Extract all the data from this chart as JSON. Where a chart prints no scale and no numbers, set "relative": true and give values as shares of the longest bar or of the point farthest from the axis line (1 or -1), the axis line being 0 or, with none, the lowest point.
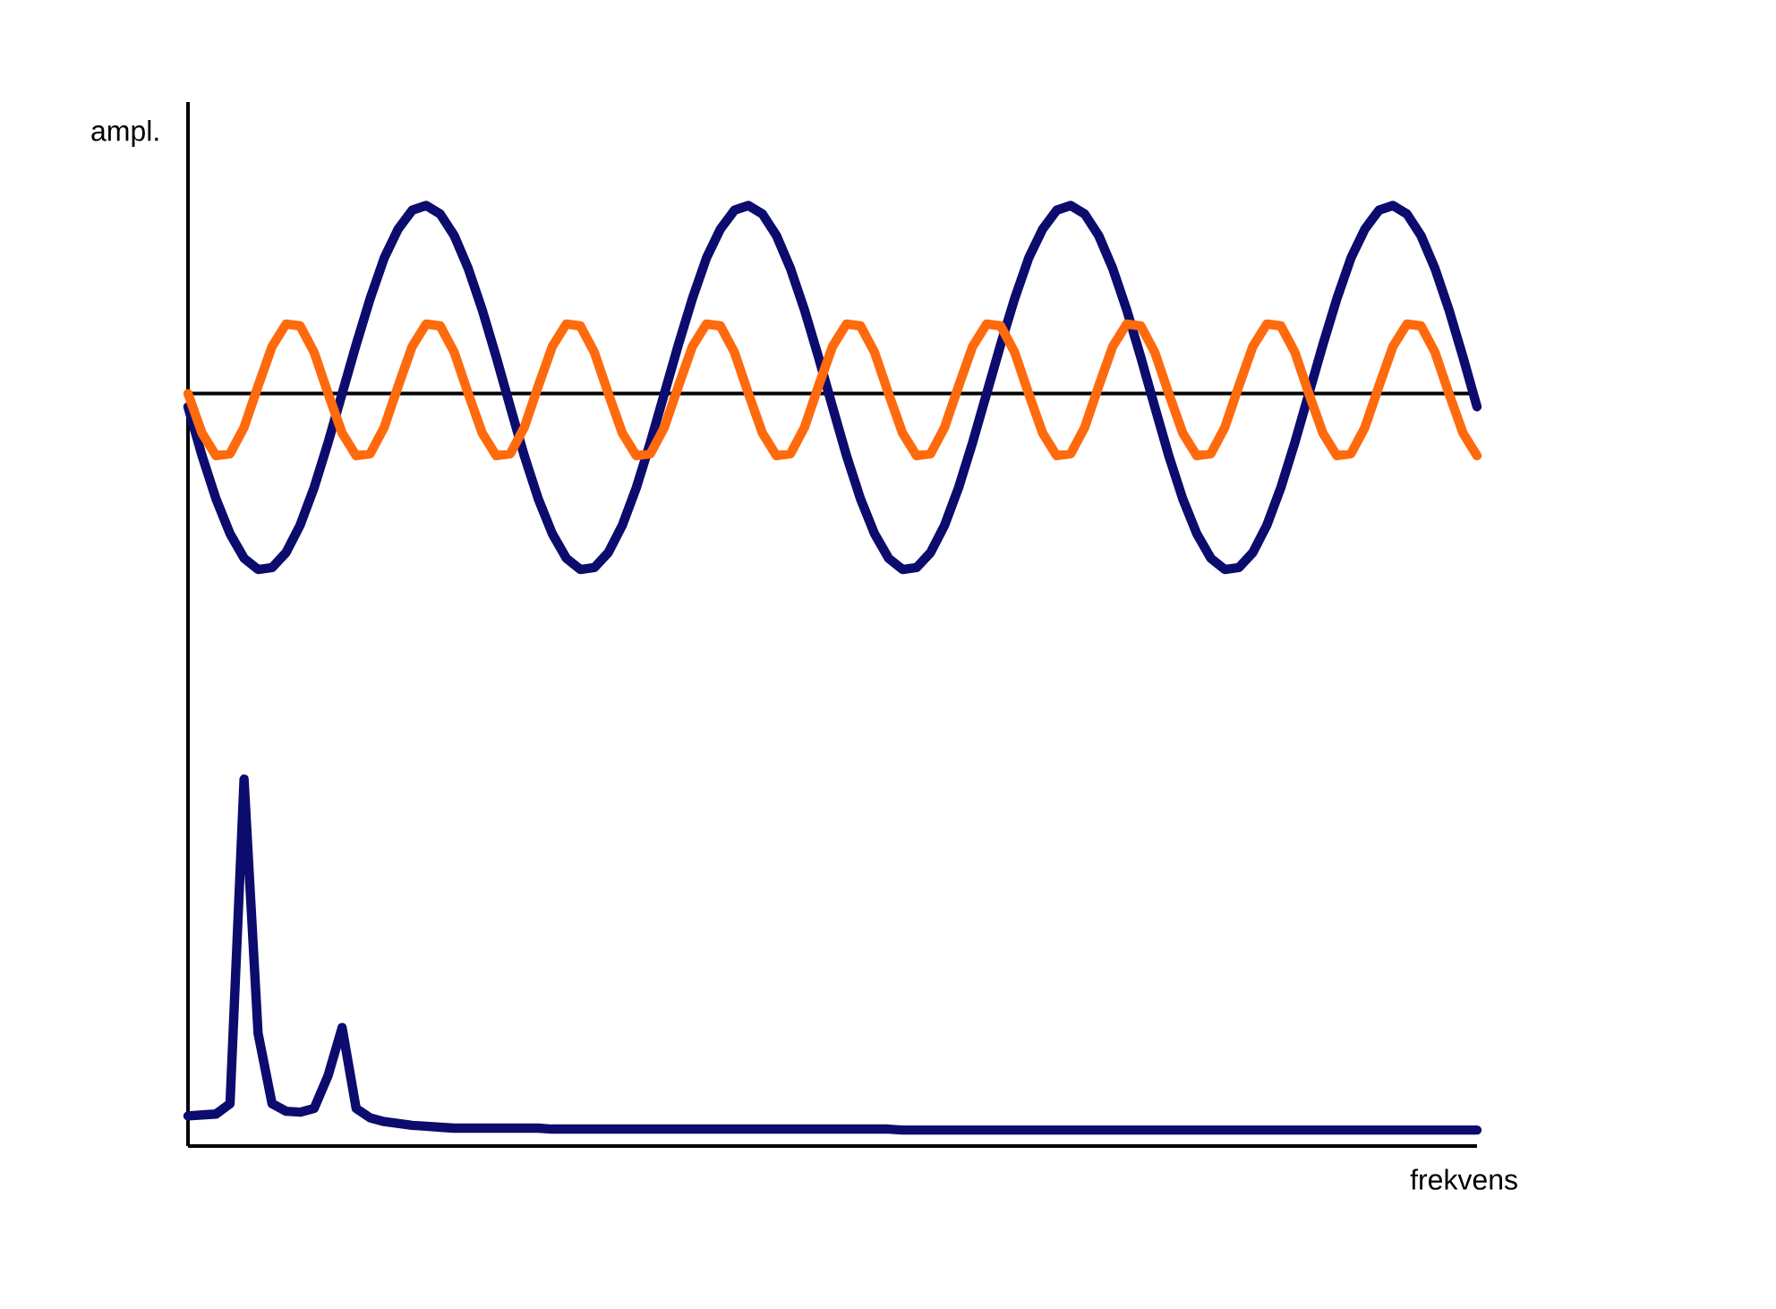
{
  "chart_data": {
    "type": "line",
    "relative": true,
    "xlabel": "frekvens",
    "ylabel": "ampl.",
    "categories": [
      null,
      null,
      null,
      null,
      null,
      null,
      null,
      null,
      null,
      null,
      null,
      null,
      null,
      null,
      null,
      null,
      null,
      null,
      null,
      null,
      null,
      null,
      null,
      null,
      null,
      null,
      null,
      null,
      null,
      null,
      null,
      null,
      null,
      null,
      null,
      null,
      null,
      null,
      null,
      null,
      null,
      null,
      null,
      null,
      null,
      null,
      null,
      null,
      null,
      null,
      null,
      null,
      null,
      null,
      null,
      null,
      null,
      null,
      null,
      null,
      null,
      null,
      null,
      null,
      null,
      null,
      null,
      null,
      null,
      null,
      null,
      null,
      null,
      null,
      null,
      null,
      null,
      null,
      null,
      null,
      null,
      null,
      null,
      null,
      null,
      null,
      null,
      null,
      null,
      null,
      null,
      null,
      null
    ],
    "ref_lines": [
      {
        "axis": "y",
        "value": 0.8,
        "color": "#000000"
      }
    ],
    "series": [
      {
        "color": "#0c0c6e",
        "values": [
          0.786,
          0.734,
          0.688,
          0.651,
          0.625,
          0.613,
          0.615,
          0.631,
          0.66,
          0.7,
          0.748,
          0.8,
          0.852,
          0.901,
          0.944,
          0.975,
          0.995,
          1.0,
          0.991,
          0.968,
          0.933,
          0.889,
          0.839,
          0.786,
          0.734,
          0.688,
          0.651,
          0.625,
          0.613,
          0.615,
          0.631,
          0.66,
          0.7,
          0.748,
          0.8,
          0.852,
          0.901,
          0.944,
          0.975,
          0.995,
          1.0,
          0.991,
          0.968,
          0.933,
          0.889,
          0.839,
          0.786,
          0.734,
          0.688,
          0.651,
          0.625,
          0.613,
          0.615,
          0.631,
          0.66,
          0.7,
          0.748,
          0.8,
          0.852,
          0.901,
          0.944,
          0.975,
          0.995,
          1.0,
          0.991,
          0.968,
          0.933,
          0.889,
          0.839,
          0.786,
          0.734,
          0.688,
          0.651,
          0.625,
          0.613,
          0.615,
          0.631,
          0.66,
          0.7,
          0.748,
          0.8,
          0.852,
          0.901,
          0.944,
          0.975,
          0.995,
          1.0,
          0.991,
          0.968,
          0.933,
          0.889,
          0.839,
          0.786
        ]
      },
      {
        "color": "#ff6a0d",
        "values": [
          0.8,
          0.758,
          0.734,
          0.736,
          0.764,
          0.808,
          0.85,
          0.874,
          0.872,
          0.844,
          0.8,
          0.758,
          0.734,
          0.736,
          0.764,
          0.808,
          0.85,
          0.874,
          0.872,
          0.844,
          0.8,
          0.758,
          0.734,
          0.736,
          0.764,
          0.808,
          0.85,
          0.874,
          0.872,
          0.844,
          0.8,
          0.758,
          0.734,
          0.736,
          0.764,
          0.808,
          0.85,
          0.874,
          0.872,
          0.844,
          0.8,
          0.758,
          0.734,
          0.736,
          0.764,
          0.808,
          0.85,
          0.874,
          0.872,
          0.844,
          0.8,
          0.758,
          0.734,
          0.736,
          0.764,
          0.808,
          0.85,
          0.874,
          0.872,
          0.844,
          0.8,
          0.758,
          0.734,
          0.736,
          0.764,
          0.808,
          0.85,
          0.874,
          0.872,
          0.844,
          0.8,
          0.758,
          0.734,
          0.736,
          0.764,
          0.808,
          0.85,
          0.874,
          0.872,
          0.844,
          0.8,
          0.758,
          0.734,
          0.736,
          0.764,
          0.808,
          0.85,
          0.874,
          0.872,
          0.844,
          0.8,
          0.758,
          0.734
        ]
      },
      {
        "color": "#0c0c6e",
        "values": [
          0.032,
          0.033,
          0.034,
          0.045,
          0.39,
          0.12,
          0.045,
          0.037,
          0.036,
          0.04,
          0.075,
          0.126,
          0.04,
          0.03,
          0.026,
          0.024,
          0.022,
          0.021,
          0.02,
          0.019,
          0.019,
          0.019,
          0.019,
          0.019,
          0.019,
          0.019,
          0.018,
          0.018,
          0.018,
          0.018,
          0.018,
          0.018,
          0.018,
          0.018,
          0.018,
          0.018,
          0.018,
          0.018,
          0.018,
          0.018,
          0.018,
          0.018,
          0.018,
          0.018,
          0.018,
          0.018,
          0.018,
          0.018,
          0.018,
          0.018,
          0.018,
          0.017,
          0.017,
          0.017,
          0.017,
          0.017,
          0.017,
          0.017,
          0.017,
          0.017,
          0.017,
          0.017,
          0.017,
          0.017,
          0.017,
          0.017,
          0.017,
          0.017,
          0.017,
          0.017,
          0.017,
          0.017,
          0.017,
          0.017,
          0.017,
          0.017,
          0.017,
          0.017,
          0.017,
          0.017,
          0.017,
          0.017,
          0.017,
          0.017,
          0.017,
          0.017,
          0.017,
          0.017,
          0.017,
          0.017,
          0.017,
          0.017,
          0.017
        ]
      }
    ]
  }
}
